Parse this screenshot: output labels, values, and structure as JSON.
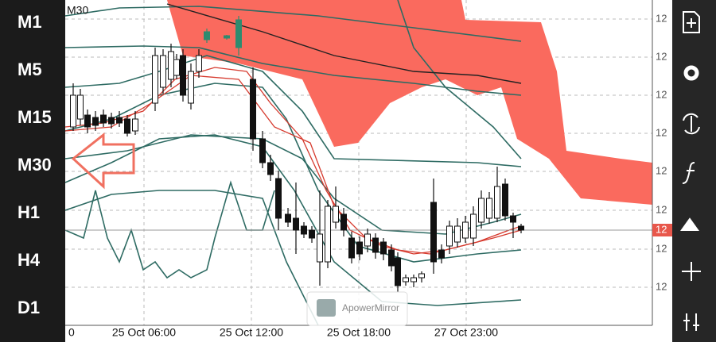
{
  "timeframes": [
    "M1",
    "M5",
    "M15",
    "M30",
    "H1",
    "H4",
    "D1"
  ],
  "chart": {
    "symbol": "M30",
    "price_labels": [
      "12",
      "12",
      "12",
      "12",
      "12",
      "12",
      "12",
      "12"
    ],
    "current_price_label": "12",
    "time_labels": [
      "0",
      "25 Oct 06:00",
      "25 Oct 12:00",
      "25 Oct 18:00",
      "27 Oct 23:00"
    ]
  },
  "watermark": "ApowerMirror"
}
